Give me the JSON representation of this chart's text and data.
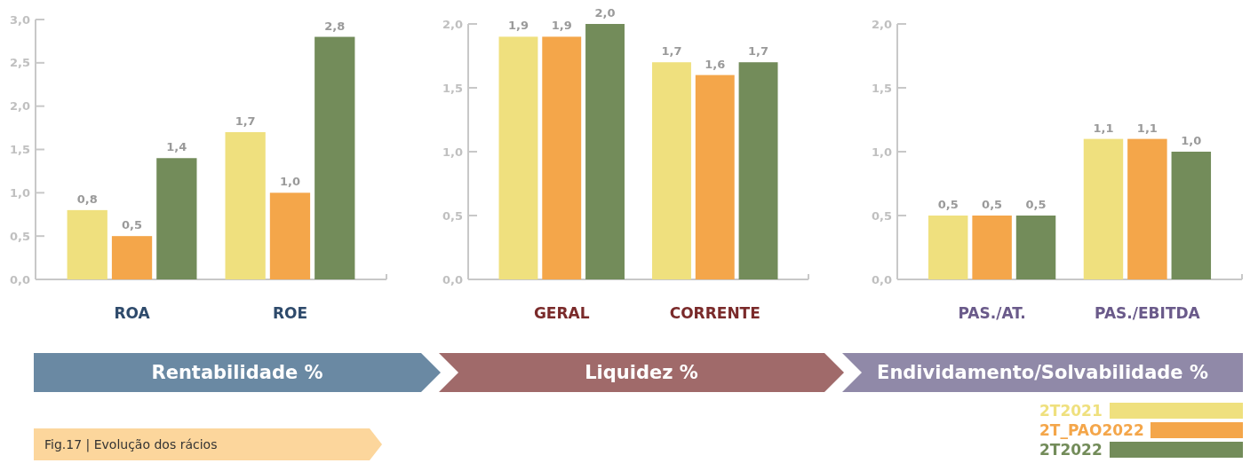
{
  "chart_data": [
    {
      "type": "bar",
      "xlabel": "Rentabilidade %",
      "categories": [
        "ROA",
        "ROE"
      ],
      "series": [
        {
          "color": "#efe07e",
          "values": [
            0.8,
            1.7
          ],
          "value_labels": [
            "0,8",
            "1,7"
          ]
        },
        {
          "color": "#f4a64a",
          "values": [
            0.5,
            1.0
          ],
          "value_labels": [
            "0,5",
            "1,0"
          ]
        },
        {
          "color": "#738c5a",
          "values": [
            1.4,
            2.8
          ],
          "value_labels": [
            "1,4",
            "2,8"
          ]
        }
      ],
      "ylim": [
        0,
        3
      ],
      "yticks": [
        {
          "value": 0,
          "label": "0,0"
        },
        {
          "value": 0.5,
          "label": "0,5"
        },
        {
          "value": 1,
          "label": "1,0"
        },
        {
          "value": 1.5,
          "label": "1,5"
        },
        {
          "value": 2,
          "label": "2,0"
        },
        {
          "value": 2.5,
          "label": "2,5"
        },
        {
          "value": 3,
          "label": "3,0"
        }
      ],
      "annotations": [
        "Fig.17 | Evolução dos rácios"
      ]
    },
    {
      "type": "bar",
      "xlabel": "Liquidez %",
      "categories": [
        "GERAL",
        "CORRENTE"
      ],
      "series": [
        {
          "color": "#efe07e",
          "values": [
            1.9,
            1.7
          ],
          "value_labels": [
            "1,9",
            "1,7"
          ]
        },
        {
          "color": "#f4a64a",
          "values": [
            1.9,
            1.6
          ],
          "value_labels": [
            "1,9",
            "1,6"
          ]
        },
        {
          "color": "#738c5a",
          "values": [
            2.0,
            1.7
          ],
          "value_labels": [
            "2,0",
            "1,7"
          ]
        }
      ],
      "ylim": [
        0,
        2
      ],
      "yticks": [
        {
          "value": 0,
          "label": "0,0"
        },
        {
          "value": 0.5,
          "label": "0,5"
        },
        {
          "value": 1,
          "label": "1,0"
        },
        {
          "value": 1.5,
          "label": "1,5"
        },
        {
          "value": 2,
          "label": "2,0"
        }
      ]
    },
    {
      "type": "bar",
      "xlabel": "Endividamento/Solvabilidade %",
      "categories": [
        "PAS./AT.",
        "PAS./EBITDA"
      ],
      "series": [
        {
          "name": "2T2021",
          "color": "#efe07e",
          "values": [
            0.5,
            1.1
          ],
          "value_labels": [
            "0,5",
            "1,1"
          ]
        },
        {
          "name": "2T_PAO2022",
          "color": "#f4a64a",
          "values": [
            0.5,
            1.1
          ],
          "value_labels": [
            "0,5",
            "1,1"
          ]
        },
        {
          "name": "2T2022",
          "color": "#738c5a",
          "values": [
            0.5,
            1.0
          ],
          "value_labels": [
            "0,5",
            "1,0"
          ]
        }
      ],
      "ylim": [
        0,
        2
      ],
      "yticks": [
        {
          "value": 0,
          "label": "0,0"
        },
        {
          "value": 0.5,
          "label": "0,5"
        },
        {
          "value": 1,
          "label": "1,0"
        },
        {
          "value": 1.5,
          "label": "1,5"
        },
        {
          "value": 2,
          "label": "2,0"
        }
      ],
      "legend": "bottom right"
    }
  ]
}
